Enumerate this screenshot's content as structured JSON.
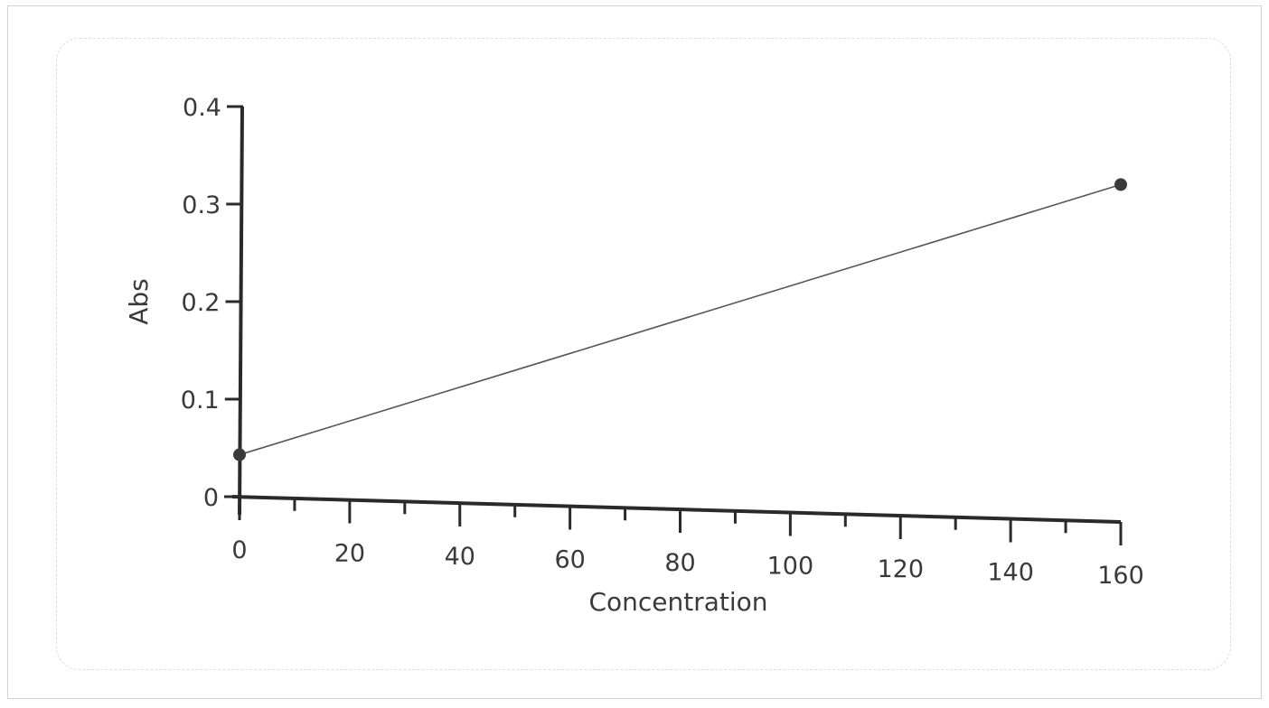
{
  "chart_data": {
    "type": "line",
    "title": "",
    "xlabel": "Concentration",
    "ylabel": "Abs",
    "xlim": [
      0,
      160
    ],
    "ylim": [
      0,
      0.4
    ],
    "x_ticks": [
      "0",
      "20",
      "40",
      "60",
      "80",
      "100",
      "120",
      "140",
      "160"
    ],
    "y_ticks": [
      "0",
      "0.1",
      "0.2",
      "0.3",
      "0.4"
    ],
    "grid": false,
    "legend": "none",
    "series": [
      {
        "x": [
          0,
          160
        ],
        "y": [
          0.043,
          0.32
        ],
        "color": "#555555",
        "markers": true
      }
    ]
  }
}
